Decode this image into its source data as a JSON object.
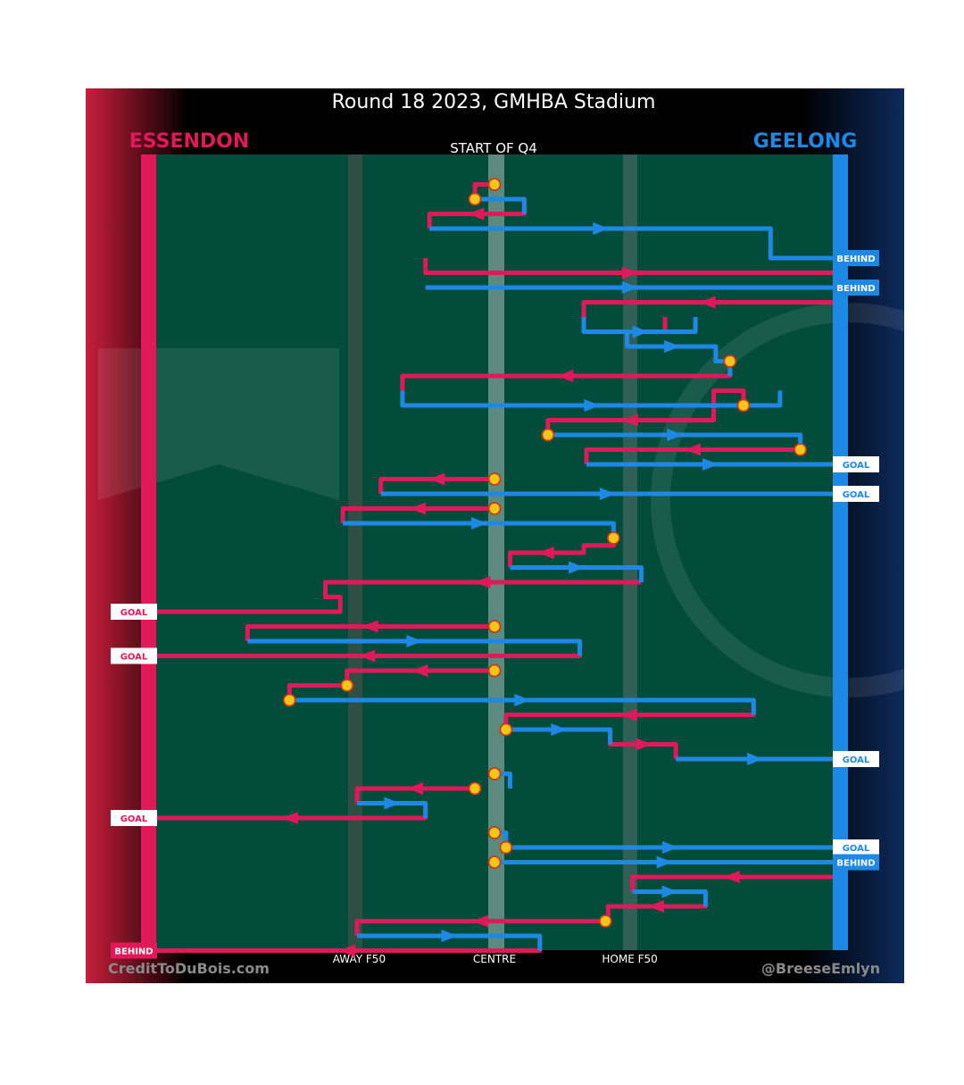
{
  "title": "Round 18 2023, GMHBA Stadium",
  "subtitle": "START OF Q4",
  "teams": {
    "left": {
      "name": "ESSENDON",
      "color": "#e0195a"
    },
    "right": {
      "name": "GEELONG",
      "color": "#1e88e5"
    }
  },
  "footer": {
    "left": "CreditToDuBois.com",
    "right": "@BreeseEmlyn"
  },
  "colors": {
    "field": "#034c3c",
    "marker": "#f5c518",
    "marker_outline": "#c73a16",
    "page_dark": "#000000"
  },
  "chart_data": {
    "type": "line",
    "x_axis": {
      "range": [
        0,
        100
      ],
      "ticks": [
        {
          "label": "AWAY F50",
          "value": 30
        },
        {
          "label": "CENTRE",
          "value": 50
        },
        {
          "label": "HOME F50",
          "value": 70
        }
      ]
    },
    "y_axis": {
      "range": [
        0,
        54
      ]
    },
    "series": [
      {
        "name": "ESSENDON",
        "segments": [
          {
            "x": [
              50,
              47.1,
              47.1
            ],
            "y": [
              1,
              1,
              2
            ]
          },
          {
            "x": [
              54.4,
              54.4,
              40.4,
              40.4
            ],
            "y": [
              2,
              3,
              3,
              4
            ]
          },
          {
            "x": [
              39.8,
              39.8,
              100
            ],
            "y": [
              6,
              7,
              7
            ]
          },
          {
            "x": [
              100,
              63.2,
              63.2
            ],
            "y": [
              9,
              9,
              10
            ]
          },
          {
            "x": [
              69.6,
              69.6,
              75.2,
              75.2
            ],
            "y": [
              12,
              11,
              11,
              10
            ]
          },
          {
            "x": [
              84.8,
              84.8,
              36.4,
              36.4
            ],
            "y": [
              13,
              14,
              14,
              15
            ]
          },
          {
            "x": [
              86.8,
              86.8,
              82.4,
              82.4,
              57.9,
              57.9
            ],
            "y": [
              16,
              15,
              15,
              17,
              17,
              18
            ]
          },
          {
            "x": [
              95.2,
              63.6,
              63.6
            ],
            "y": [
              19,
              19,
              20
            ]
          },
          {
            "x": [
              50,
              33.2,
              33.2
            ],
            "y": [
              21,
              21,
              22
            ]
          },
          {
            "x": [
              50,
              27.6,
              27.6
            ],
            "y": [
              23,
              23,
              24
            ]
          },
          {
            "x": [
              67.6,
              67.6,
              63.2,
              63.2,
              52.3,
              52.3
            ],
            "y": [
              25,
              25.5,
              25.5,
              26,
              26,
              27
            ]
          },
          {
            "x": [
              71.7,
              71.7,
              25,
              25,
              27.2,
              27.2,
              0
            ],
            "y": [
              28,
              28,
              28,
              29,
              29,
              30,
              30
            ]
          },
          {
            "x": [
              50,
              13.5,
              13.5
            ],
            "y": [
              31,
              31,
              32
            ]
          },
          {
            "x": [
              62.6,
              62.6,
              0
            ],
            "y": [
              32,
              33,
              33
            ]
          },
          {
            "x": [
              50,
              28.2,
              28.2,
              19.7,
              19.7
            ],
            "y": [
              34,
              34,
              35,
              35,
              36
            ]
          },
          {
            "x": [
              88.3,
              88.3,
              51.7,
              51.7
            ],
            "y": [
              36,
              37,
              37,
              38
            ]
          },
          {
            "x": [
              67.1,
              67.1,
              76.8,
              76.8
            ],
            "y": [
              38,
              39,
              39,
              40
            ]
          },
          {
            "x": [
              47.1,
              47.1,
              29.7,
              29.7
            ],
            "y": [
              42,
              42,
              42,
              43
            ]
          },
          {
            "x": [
              39.8,
              39.8,
              0
            ],
            "y": [
              43,
              44,
              44
            ]
          },
          {
            "x": [
              100,
              70.4,
              70.4
            ],
            "y": [
              48,
              48,
              49
            ]
          },
          {
            "x": [
              81.2,
              81.2,
              66.8,
              66.8
            ],
            "y": [
              49,
              50,
              50,
              51
            ]
          },
          {
            "x": [
              66.4,
              66.4,
              29.7,
              29.7
            ],
            "y": [
              51,
              51,
              51,
              52
            ]
          },
          {
            "x": [
              56.7,
              56.7,
              0
            ],
            "y": [
              52,
              53,
              53
            ]
          }
        ]
      },
      {
        "name": "GEELONG",
        "segments": [
          {
            "x": [
              47.1,
              54.4,
              54.4
            ],
            "y": [
              2,
              2,
              3
            ]
          },
          {
            "x": [
              40.4,
              90.8,
              90.8,
              100
            ],
            "y": [
              4,
              4,
              6,
              6
            ]
          },
          {
            "x": [
              39.8,
              100
            ],
            "y": [
              8,
              8
            ]
          },
          {
            "x": [
              63.2,
              63.2,
              79.7,
              79.7
            ],
            "y": [
              10,
              11,
              11,
              10
            ]
          },
          {
            "x": [
              69.6,
              69.6,
              82.7,
              82.7,
              84.8,
              84.8
            ],
            "y": [
              11,
              12,
              12,
              13,
              13,
              14
            ]
          },
          {
            "x": [
              36.4,
              36.4,
              92.2,
              92.2
            ],
            "y": [
              15,
              16,
              16,
              15
            ]
          },
          {
            "x": [
              57.9,
              57.9,
              95.2,
              95.2
            ],
            "y": [
              18,
              18,
              18,
              19
            ]
          },
          {
            "x": [
              63.6,
              100
            ],
            "y": [
              20,
              20
            ]
          },
          {
            "x": [
              33.2,
              100
            ],
            "y": [
              22,
              22
            ]
          },
          {
            "x": [
              27.6,
              67.6,
              67.6
            ],
            "y": [
              24,
              24,
              25
            ]
          },
          {
            "x": [
              52.3,
              71.7,
              71.7
            ],
            "y": [
              27,
              27,
              28
            ]
          },
          {
            "x": [
              13.5,
              62.6,
              62.6
            ],
            "y": [
              32,
              32,
              33
            ]
          },
          {
            "x": [
              19.7,
              88.3,
              88.3
            ],
            "y": [
              36,
              36,
              37
            ]
          },
          {
            "x": [
              51.7,
              67.1,
              67.1
            ],
            "y": [
              38,
              38,
              39
            ]
          },
          {
            "x": [
              76.8,
              100
            ],
            "y": [
              40,
              40
            ]
          },
          {
            "x": [
              52.3,
              52.3,
              50
            ],
            "y": [
              42,
              41,
              41
            ]
          },
          {
            "x": [
              29.7,
              39.8,
              39.8
            ],
            "y": [
              43,
              43,
              44
            ]
          },
          {
            "x": [
              50,
              51.7,
              51.7,
              100
            ],
            "y": [
              45,
              45,
              46,
              46
            ]
          },
          {
            "x": [
              50,
              100
            ],
            "y": [
              47,
              47
            ]
          },
          {
            "x": [
              70.4,
              81.2,
              81.2
            ],
            "y": [
              49,
              49,
              50
            ]
          },
          {
            "x": [
              29.7,
              29.7,
              56.7,
              56.7
            ],
            "y": [
              52,
              52,
              52,
              53
            ]
          }
        ]
      }
    ],
    "possession_changes": [
      {
        "x": 50,
        "y": 1
      },
      {
        "x": 47.1,
        "y": 2
      },
      {
        "x": 84.8,
        "y": 13
      },
      {
        "x": 86.8,
        "y": 16
      },
      {
        "x": 57.9,
        "y": 18
      },
      {
        "x": 95.2,
        "y": 19
      },
      {
        "x": 50,
        "y": 21
      },
      {
        "x": 50,
        "y": 23
      },
      {
        "x": 67.6,
        "y": 25
      },
      {
        "x": 50,
        "y": 31
      },
      {
        "x": 50,
        "y": 34
      },
      {
        "x": 28.2,
        "y": 35
      },
      {
        "x": 19.7,
        "y": 36
      },
      {
        "x": 51.7,
        "y": 38
      },
      {
        "x": 50,
        "y": 41
      },
      {
        "x": 47.1,
        "y": 42
      },
      {
        "x": 50,
        "y": 45
      },
      {
        "x": 51.7,
        "y": 46
      },
      {
        "x": 50,
        "y": 47
      },
      {
        "x": 66.4,
        "y": 51
      }
    ],
    "outcomes": [
      {
        "team": "GEELONG",
        "label": "BEHIND",
        "y": 6
      },
      {
        "team": "GEELONG",
        "label": "BEHIND",
        "y": 8
      },
      {
        "team": "GEELONG",
        "label": "GOAL",
        "y": 20
      },
      {
        "team": "GEELONG",
        "label": "GOAL",
        "y": 22
      },
      {
        "team": "ESSENDON",
        "label": "GOAL",
        "y": 30
      },
      {
        "team": "ESSENDON",
        "label": "GOAL",
        "y": 33
      },
      {
        "team": "GEELONG",
        "label": "GOAL",
        "y": 40
      },
      {
        "team": "ESSENDON",
        "label": "GOAL",
        "y": 44
      },
      {
        "team": "GEELONG",
        "label": "GOAL",
        "y": 46
      },
      {
        "team": "GEELONG",
        "label": "BEHIND",
        "y": 47
      },
      {
        "team": "ESSENDON",
        "label": "BEHIND",
        "y": 53
      }
    ]
  }
}
